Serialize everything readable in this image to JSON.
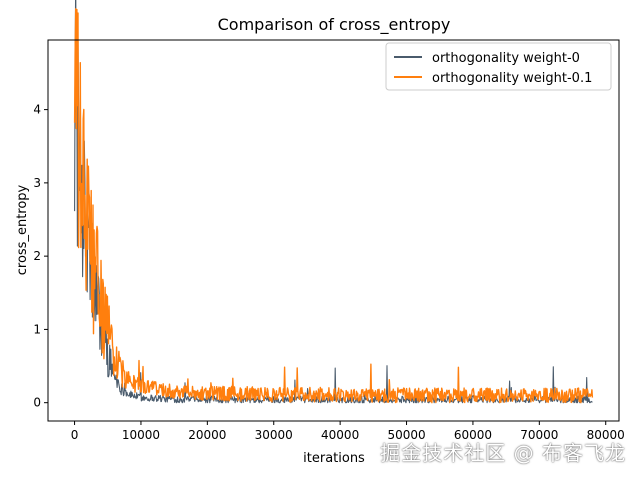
{
  "chart_data": {
    "type": "line",
    "title": "Comparison of cross_entropy",
    "xlabel": "iterations",
    "ylabel": "cross_entropy",
    "xlim": [
      -4000,
      82000
    ],
    "ylim": [
      -0.25,
      4.95
    ],
    "xticks": [
      0,
      10000,
      20000,
      30000,
      40000,
      50000,
      60000,
      70000,
      80000
    ],
    "yticks": [
      0,
      1,
      2,
      3,
      4
    ],
    "grid": false,
    "legend_position": "top-right",
    "series": [
      {
        "name": "orthogonality weight-0",
        "color": "#4a5b6c",
        "x": [
          0,
          500,
          1000,
          2000,
          3000,
          4000,
          5000,
          6000,
          7000,
          8000,
          10000,
          15000,
          20000,
          30000,
          40000,
          50000,
          60000,
          70000,
          78000
        ],
        "y": [
          4.6,
          3.5,
          2.9,
          2.1,
          1.55,
          1.05,
          0.65,
          0.38,
          0.2,
          0.12,
          0.07,
          0.05,
          0.04,
          0.04,
          0.04,
          0.04,
          0.04,
          0.04,
          0.04
        ]
      },
      {
        "name": "orthogonality weight-0.1",
        "color": "#ff7f0e",
        "x": [
          0,
          500,
          1000,
          2000,
          3000,
          4000,
          5000,
          6000,
          7000,
          8000,
          10000,
          15000,
          20000,
          30000,
          40000,
          50000,
          60000,
          70000,
          78000
        ],
        "y": [
          4.65,
          3.6,
          3.0,
          2.35,
          1.8,
          1.35,
          0.95,
          0.65,
          0.42,
          0.3,
          0.22,
          0.16,
          0.13,
          0.11,
          0.11,
          0.1,
          0.1,
          0.1,
          0.1
        ]
      }
    ]
  },
  "watermark": "掘金技术社区 @ 布客飞龙"
}
